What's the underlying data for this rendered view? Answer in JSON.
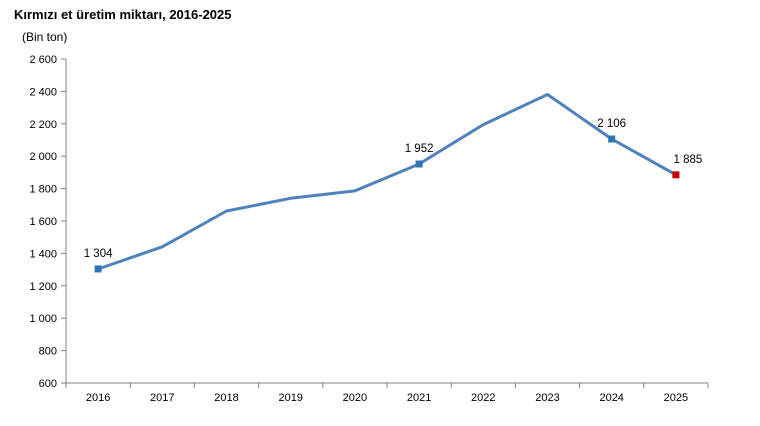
{
  "chart_data": {
    "type": "line",
    "title": "Kırmızı et üretim miktarı, 2016-2025",
    "ylabel": "(Bin ton)",
    "xlabel": "",
    "ylim": [
      600,
      2600
    ],
    "yticks": [
      600,
      800,
      1000,
      1200,
      1400,
      1600,
      1800,
      2000,
      2200,
      2400,
      2600
    ],
    "ytick_labels": [
      "600",
      "800",
      "1 000",
      "1 200",
      "1 400",
      "1 600",
      "1 800",
      "2 000",
      "2 200",
      "2 400",
      "2 600"
    ],
    "grid": false,
    "categories": [
      "2016",
      "2017",
      "2018",
      "2019",
      "2020",
      "2021",
      "2022",
      "2023",
      "2024",
      "2025"
    ],
    "series": [
      {
        "values": [
          1304,
          1441,
          1662,
          1740,
          1786,
          1952,
          2195,
          2381,
          2106,
          1885
        ],
        "color": "#4f81bd"
      }
    ],
    "markers": [
      {
        "index": 0,
        "color": "#2e75b6"
      },
      {
        "index": 5,
        "color": "#2e75b6"
      },
      {
        "index": 8,
        "color": "#2e75b6"
      },
      {
        "index": 9,
        "color": "#c00000"
      }
    ],
    "data_labels": [
      {
        "index": 0,
        "text": "1 304"
      },
      {
        "index": 5,
        "text": "1 952"
      },
      {
        "index": 8,
        "text": "2 106"
      },
      {
        "index": 9,
        "text": "1 885"
      }
    ]
  }
}
